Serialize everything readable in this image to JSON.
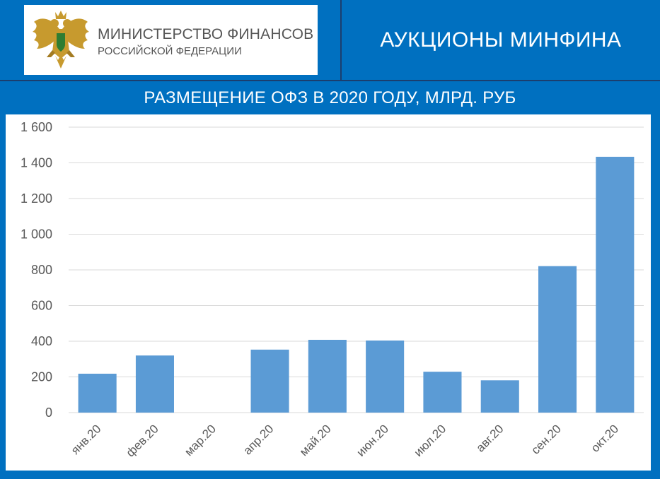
{
  "header": {
    "ministry_line1": "МИНИСТЕРСТВО ФИНАНСОВ",
    "ministry_line2": "РОССИЙСКОЙ ФЕДЕРАЦИИ",
    "title": "АУКЦИОНЫ МИНФИНА",
    "emblem_icon": "double-headed-eagle-icon"
  },
  "band": {
    "title": "РАЗМЕЩЕНИЕ ОФЗ В 2020 ГОДУ, МЛРД. РУБ"
  },
  "colors": {
    "background": "#0070c0",
    "bar": "#5b9bd5",
    "grid": "#d9d9d9",
    "divider": "#1b3e6e"
  },
  "chart_data": {
    "type": "bar",
    "title": "РАЗМЕЩЕНИЕ ОФЗ В 2020 ГОДУ, МЛРД. РУБ",
    "xlabel": "",
    "ylabel": "",
    "categories": [
      "янв.20",
      "фев.20",
      "мар.20",
      "апр.20",
      "май.20",
      "июн.20",
      "июл.20",
      "авг.20",
      "сен.20",
      "окт.20"
    ],
    "values": [
      218,
      320,
      0,
      353,
      408,
      404,
      229,
      181,
      821,
      1434
    ],
    "ylim": [
      0,
      1600
    ],
    "yticks": [
      0,
      200,
      400,
      600,
      800,
      1000,
      1200,
      1400,
      1600
    ],
    "ytick_labels": [
      "0",
      "200",
      "400",
      "600",
      "800",
      "1 000",
      "1 200",
      "1 400",
      "1 600"
    ],
    "grid": true,
    "legend": "none"
  }
}
